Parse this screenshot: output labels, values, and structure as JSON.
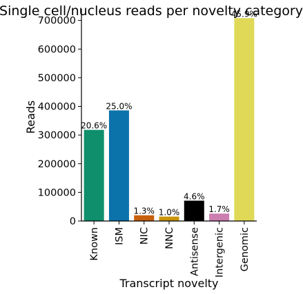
{
  "chart_data": {
    "type": "bar",
    "title": "Single cell/nucleus reads per novelty category",
    "xlabel": "Transcript novelty",
    "ylabel": "Reads",
    "ylim": [
      0,
      740000
    ],
    "yticks": [
      0,
      100000,
      200000,
      300000,
      400000,
      500000,
      600000,
      700000
    ],
    "ytick_labels": [
      "0",
      "100000",
      "200000",
      "300000",
      "400000",
      "500000",
      "600000",
      "700000"
    ],
    "categories": [
      "Known",
      "ISM",
      "NIC",
      "NNC",
      "Antisense",
      "Intergenic",
      "Genomic"
    ],
    "values": [
      318000,
      386000,
      20000,
      15500,
      71000,
      26000,
      708000
    ],
    "percent_labels": [
      "20.6%",
      "25.0%",
      "1.3%",
      "1.0%",
      "4.6%",
      "1.7%",
      "45.9%"
    ],
    "colors": [
      "#0f8f6c",
      "#0b72aa",
      "#c85f0c",
      "#c9950b",
      "#000000",
      "#cc7eb0",
      "#dfd957"
    ],
    "grid": false,
    "legend": "none"
  }
}
